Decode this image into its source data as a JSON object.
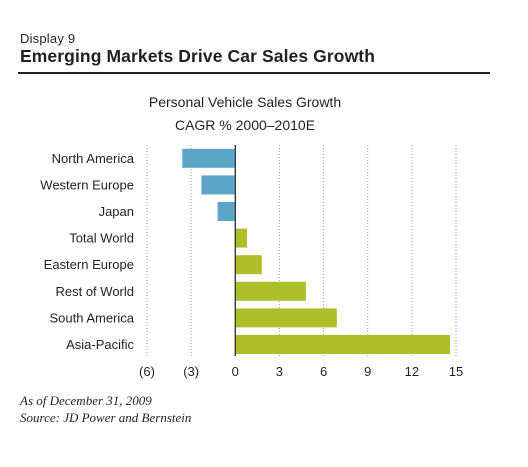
{
  "header": {
    "display_label": "Display 9",
    "title": "Emerging Markets Drive Car Sales Growth"
  },
  "colors": {
    "negative_bar": "#5ba6c6",
    "positive_bar": "#afbf2a",
    "rule": "#231f20",
    "grid": "#9d9d9d"
  },
  "chart_data": {
    "type": "bar",
    "orientation": "horizontal",
    "title": "Personal Vehicle Sales Growth",
    "subtitle": "CAGR % 2000–2010E",
    "categories": [
      "North America",
      "Western Europe",
      "Japan",
      "Total World",
      "Eastern Europe",
      "Rest of World",
      "South America",
      "Asia-Pacific"
    ],
    "values": [
      -3.6,
      -2.3,
      -1.2,
      0.8,
      1.8,
      4.8,
      6.9,
      14.6
    ],
    "xlim": [
      -6,
      15
    ],
    "xticks": [
      -6,
      -3,
      0,
      3,
      6,
      9,
      12,
      15
    ],
    "xtick_labels": [
      "(6)",
      "(3)",
      "0",
      "3",
      "6",
      "9",
      "12",
      "15"
    ],
    "grid": "vertical dotted",
    "xlabel": "",
    "ylabel": ""
  },
  "footer": {
    "as_of": "As of December 31, 2009",
    "source": "Source: JD Power and Bernstein"
  }
}
